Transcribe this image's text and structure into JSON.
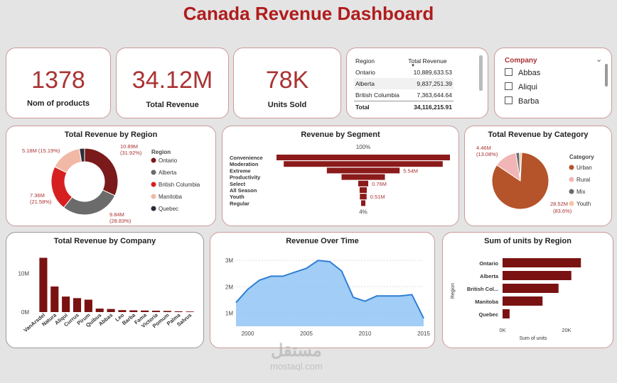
{
  "page": {
    "title": "Canada Revenue Dashboard"
  },
  "kpis": [
    {
      "value": "1378",
      "label": "Nom of products"
    },
    {
      "value": "34.12M",
      "label": "Total Revenue"
    },
    {
      "value": "78K",
      "label": "Units Sold"
    }
  ],
  "region_table": {
    "headers": [
      "Region",
      "Total Revenue"
    ],
    "rows": [
      [
        "Ontario",
        "10,889,633.53"
      ],
      [
        "Alberta",
        "9,837,251.39"
      ],
      [
        "British Columbia",
        "7,363,644.64"
      ]
    ],
    "total_label": "Total",
    "total_value": "34,116,215.91"
  },
  "company_slicer": {
    "title": "Company",
    "items": [
      "Abbas",
      "Aliqui",
      "Barba"
    ]
  },
  "chart_data": [
    {
      "type": "pie",
      "title": "Total Revenue by Region",
      "legend_title": "Region",
      "legend_position": "right",
      "categories": [
        "Ontario",
        "Alberta",
        "British Columbia",
        "Manitoba",
        "Quebec"
      ],
      "values": [
        10.89,
        9.84,
        7.36,
        5.18,
        0.85
      ],
      "data_labels": [
        "10.89M (31.92%)",
        "9.84M (28.83%)",
        "7.36M (21.58%)",
        "5.18M (15.19%)",
        ""
      ],
      "colors": [
        "#7a1a1a",
        "#6b6b6b",
        "#d62020",
        "#f2b8a6",
        "#2b2b3a"
      ]
    },
    {
      "type": "bar",
      "title": "Revenue by Segment",
      "categories": [
        "Convenience",
        "Moderation",
        "Extreme",
        "Productivity",
        "Select",
        "All Season",
        "Youth",
        "Regular"
      ],
      "values": [
        13.2,
        12.1,
        5.54,
        3.3,
        0.76,
        0.55,
        0.51,
        0.3
      ],
      "data_labels": [
        "",
        "",
        "5.54M",
        "",
        "0.76M",
        "",
        "0.51M",
        ""
      ],
      "top_label": "100%",
      "bottom_label": "4%",
      "color": "#8b1a1a"
    },
    {
      "type": "pie",
      "title": "Total Revenue by Category",
      "legend_title": "Category",
      "legend_position": "right",
      "categories": [
        "Urban",
        "Rural",
        "Mix",
        "Youth"
      ],
      "values": [
        28.52,
        4.46,
        0.7,
        0.44
      ],
      "data_labels": [
        "28.52M (83.6%)",
        "4.46M (13.08%)",
        "",
        ""
      ],
      "colors": [
        "#b5532a",
        "#f2b5b5",
        "#6b6b6b",
        "#f5c4a4"
      ]
    },
    {
      "type": "bar",
      "title": "Total Revenue by Company",
      "categories": [
        "VanArsdel",
        "Natura",
        "Aliqui",
        "Currus",
        "Pirum",
        "Quibus",
        "Abbas",
        "Leo",
        "Barba",
        "Fama",
        "Victoria",
        "Pomum",
        "Palma",
        "Salvus"
      ],
      "values": [
        14.0,
        6.6,
        4.0,
        3.6,
        3.2,
        0.9,
        0.8,
        0.5,
        0.45,
        0.4,
        0.35,
        0.3,
        0.2,
        0.15
      ],
      "yticks": [
        {
          "v": 0,
          "label": "0M"
        },
        {
          "v": 10,
          "label": "10M"
        }
      ],
      "ylim": [
        0,
        15
      ],
      "color": "#7a1212"
    },
    {
      "type": "area",
      "title": "Revenue Over Time",
      "x": [
        1999,
        2000,
        2001,
        2002,
        2003,
        2004,
        2005,
        2006,
        2007,
        2008,
        2009,
        2010,
        2011,
        2012,
        2013,
        2014,
        2015
      ],
      "values": [
        1.4,
        1.9,
        2.25,
        2.4,
        2.4,
        2.55,
        2.7,
        3.0,
        2.95,
        2.6,
        1.6,
        1.45,
        1.65,
        1.65,
        1.65,
        1.7,
        0.8
      ],
      "xticks": [
        {
          "v": 2000,
          "label": "2000"
        },
        {
          "v": 2005,
          "label": "2005"
        },
        {
          "v": 2010,
          "label": "2010"
        },
        {
          "v": 2015,
          "label": "2015"
        }
      ],
      "yticks": [
        {
          "v": 1,
          "label": "1M"
        },
        {
          "v": 2,
          "label": "2M"
        },
        {
          "v": 3,
          "label": "3M"
        }
      ],
      "xlim": [
        1999,
        2015
      ],
      "ylim": [
        0.5,
        3.3
      ],
      "color": "#90c4f5",
      "line_color": "#2f7fd6"
    },
    {
      "type": "bar",
      "title": "Sum of units by Region",
      "orientation": "horizontal",
      "categories": [
        "Ontario",
        "Alberta",
        "British Col...",
        "Manitoba",
        "Quebec"
      ],
      "values": [
        24500,
        21500,
        17500,
        12500,
        2200
      ],
      "xticks": [
        {
          "v": 0,
          "label": "0K"
        },
        {
          "v": 20000,
          "label": "20K"
        }
      ],
      "xlim": [
        0,
        28000
      ],
      "xlabel": "Sum of units",
      "ylabel": "Region",
      "color": "#7a1212"
    }
  ],
  "watermark": {
    "text_ar": "مستقل",
    "text_en": "mostaql.com"
  }
}
